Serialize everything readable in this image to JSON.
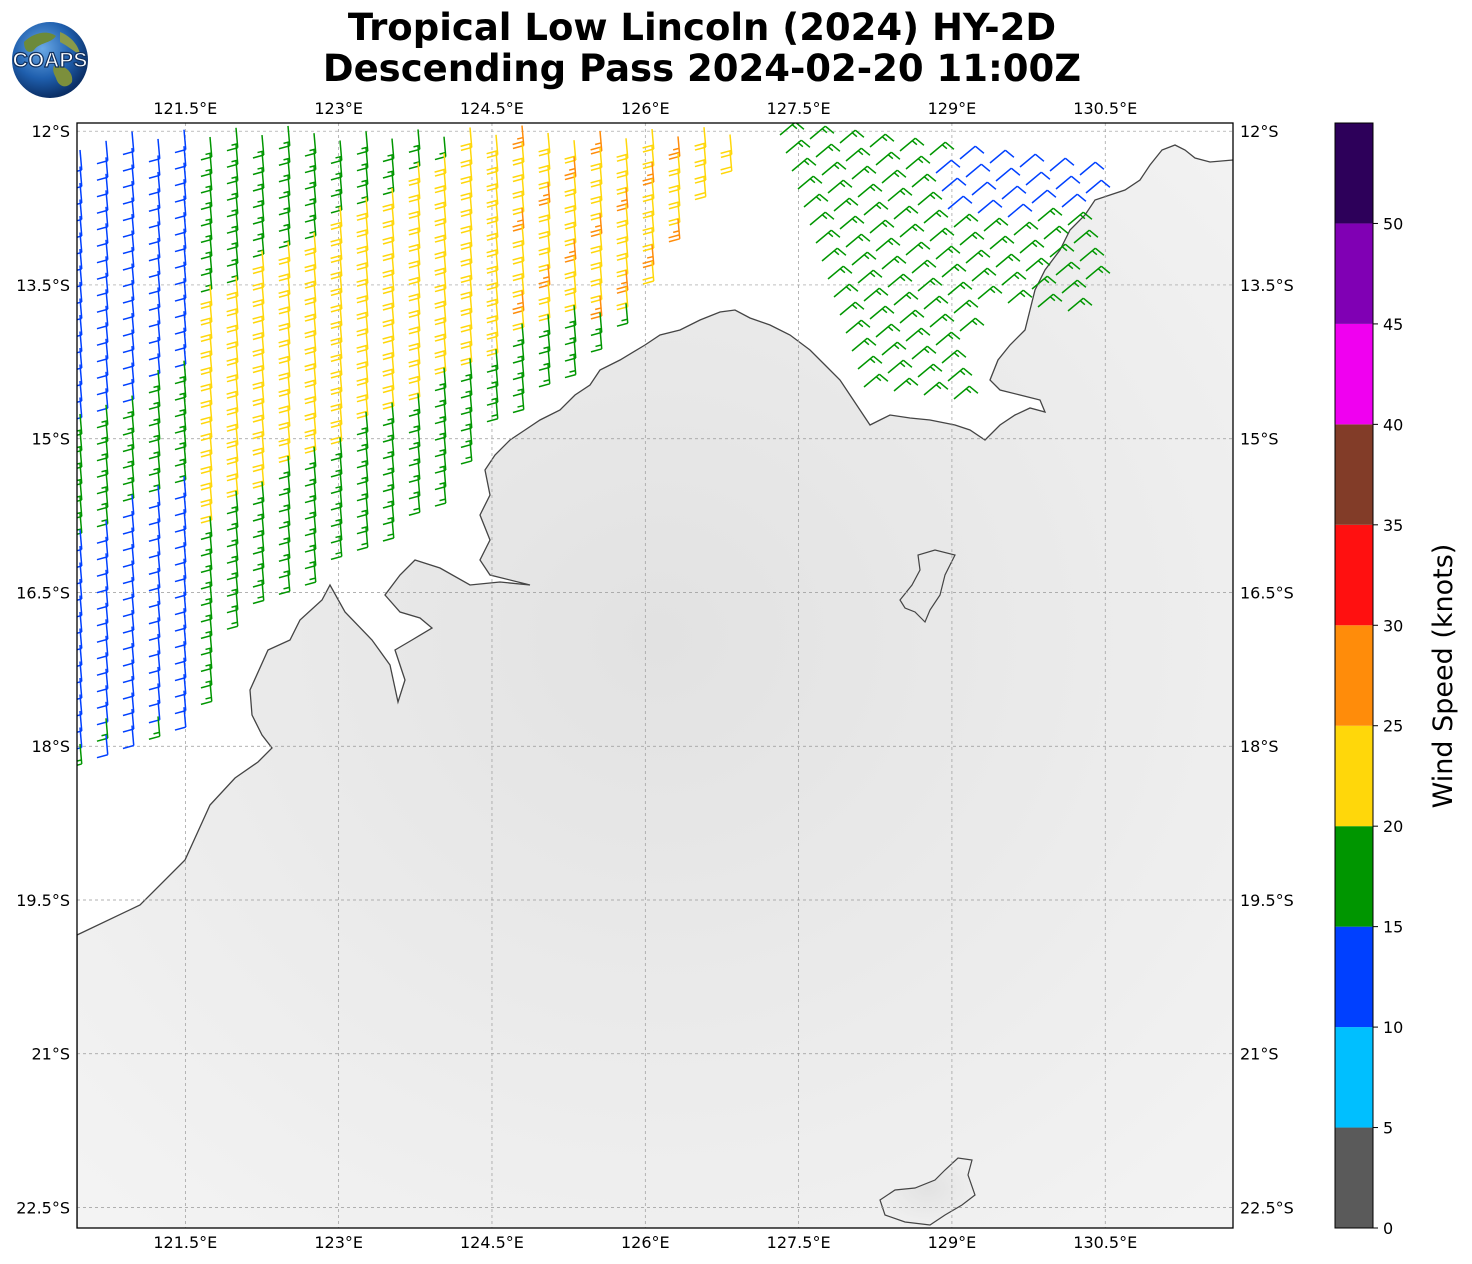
{
  "title_line1": "Tropical Low Lincoln (2024) HY-2D",
  "title_line2": "Descending Pass 2024-02-20 11:00Z",
  "logo_text": "COAPS",
  "map": {
    "lon_ticks": [
      "121.5°E",
      "123°E",
      "124.5°E",
      "126°E",
      "127.5°E",
      "129°E",
      "130.5°E"
    ],
    "lat_ticks": [
      "12°S",
      "13.5°S",
      "15°S",
      "16.5°S",
      "18°S",
      "19.5°S",
      "21°S",
      "22.5°S"
    ],
    "lon_values": [
      121.5,
      123,
      124.5,
      126,
      127.5,
      129,
      130.5
    ],
    "lat_values": [
      -12,
      -13.5,
      -15,
      -16.5,
      -18,
      -19.5,
      -21,
      -22.5
    ],
    "lon_range": [
      120.44,
      131.75
    ],
    "lat_range": [
      -22.7,
      -11.92
    ],
    "grid": true,
    "land_color": "#eeeeee",
    "coastline_color": "#444444"
  },
  "colorbar": {
    "label": "Wind Speed (knots)",
    "tick_labels": [
      "0",
      "5",
      "10",
      "15",
      "20",
      "25",
      "30",
      "35",
      "40",
      "45",
      "50"
    ],
    "tick_values": [
      0,
      5,
      10,
      15,
      20,
      25,
      30,
      35,
      40,
      45,
      50
    ],
    "range": [
      0,
      55
    ],
    "bins": [
      {
        "from": 0,
        "to": 5,
        "color": "#5a5a5a"
      },
      {
        "from": 5,
        "to": 10,
        "color": "#00bfff"
      },
      {
        "from": 10,
        "to": 15,
        "color": "#0040ff"
      },
      {
        "from": 15,
        "to": 20,
        "color": "#009600"
      },
      {
        "from": 20,
        "to": 25,
        "color": "#ffd70a"
      },
      {
        "from": 25,
        "to": 30,
        "color": "#ff8c0a"
      },
      {
        "from": 30,
        "to": 35,
        "color": "#ff1010"
      },
      {
        "from": 35,
        "to": 40,
        "color": "#823c28"
      },
      {
        "from": 40,
        "to": 45,
        "color": "#f000f0"
      },
      {
        "from": 45,
        "to": 50,
        "color": "#8000b4"
      },
      {
        "from": 50,
        "to": 55,
        "color": "#2d005a"
      }
    ]
  },
  "chart_data": {
    "type": "map",
    "wind_barbs": {
      "description_units": "knots",
      "regions": [
        {
          "name": "northwest swath",
          "lon": [
            120.4,
            125.8
          ],
          "lat": [
            -19.5,
            -12.0
          ],
          "speed_range": [
            10,
            20
          ],
          "direction_from": "SE"
        },
        {
          "name": "core of swath",
          "lon": [
            123.0,
            127.5
          ],
          "lat": [
            -16.0,
            -12.0
          ],
          "speed_range": [
            15,
            28
          ],
          "direction_from": "SE"
        },
        {
          "name": "northeast swath",
          "lon": [
            127.3,
            131.3
          ],
          "lat": [
            -14.5,
            -12.0
          ],
          "speed_range": [
            10,
            20
          ],
          "direction_from": "N-NW"
        }
      ]
    }
  }
}
